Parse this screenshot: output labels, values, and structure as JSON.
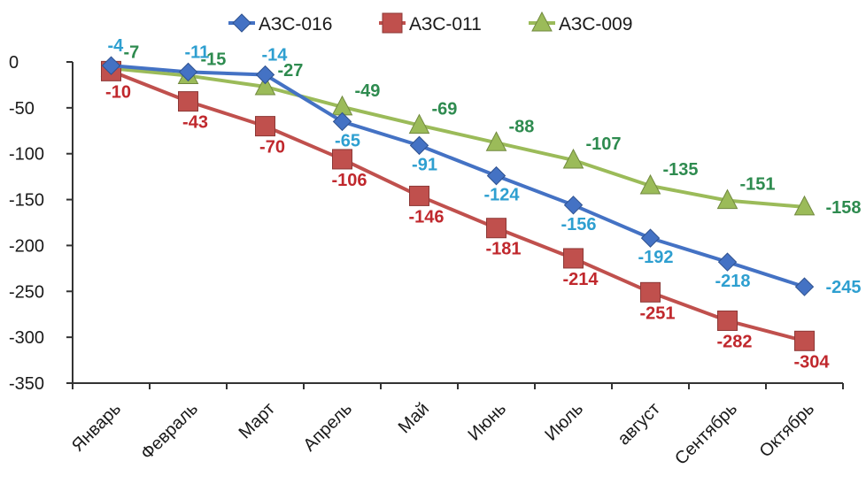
{
  "chart_data": {
    "type": "line",
    "categories": [
      "Январь",
      "Февраль",
      "Март",
      "Апрель",
      "Май",
      "Июнь",
      "Июль",
      "август",
      "Сентябрь",
      "Октябрь"
    ],
    "ylim": [
      -350,
      0
    ],
    "yticks": [
      0,
      -50,
      -100,
      -150,
      -200,
      -250,
      -300,
      -350
    ],
    "ytick_labels": [
      "0",
      "-50",
      "-100",
      "-150",
      "-200",
      "-250",
      "-300",
      "-350"
    ],
    "grid": false,
    "legend_position": "top",
    "series": [
      {
        "name": "АЗС-016",
        "color": "#4472c4",
        "label_color": "#2e9fd0",
        "marker": "diamond",
        "values": [
          -4,
          -11,
          -14,
          -65,
          -91,
          -124,
          -156,
          -192,
          -218,
          -245
        ],
        "labels": [
          "-4",
          "-11",
          "-14",
          "-65",
          "-91",
          "-124",
          "-156",
          "-192",
          "-218",
          "-245"
        ]
      },
      {
        "name": "АЗС-011",
        "color": "#c0504d",
        "label_color": "#c0282d",
        "marker": "square",
        "values": [
          -10,
          -43,
          -70,
          -106,
          -146,
          -181,
          -214,
          -251,
          -282,
          -304
        ],
        "labels": [
          "-10",
          "-43",
          "-70",
          "-106",
          "-146",
          "-181",
          "-214",
          "-251",
          "-282",
          "-304"
        ]
      },
      {
        "name": "АЗС-009",
        "color": "#9bbb59",
        "label_color": "#2e8b4f",
        "marker": "triangle",
        "values": [
          -7,
          -15,
          -27,
          -49,
          -69,
          -88,
          -107,
          -135,
          -151,
          -158
        ],
        "labels": [
          "-7",
          "-15",
          "-27",
          "-49",
          "-69",
          "-88",
          "-107",
          "-135",
          "-151",
          "-158"
        ]
      }
    ]
  }
}
